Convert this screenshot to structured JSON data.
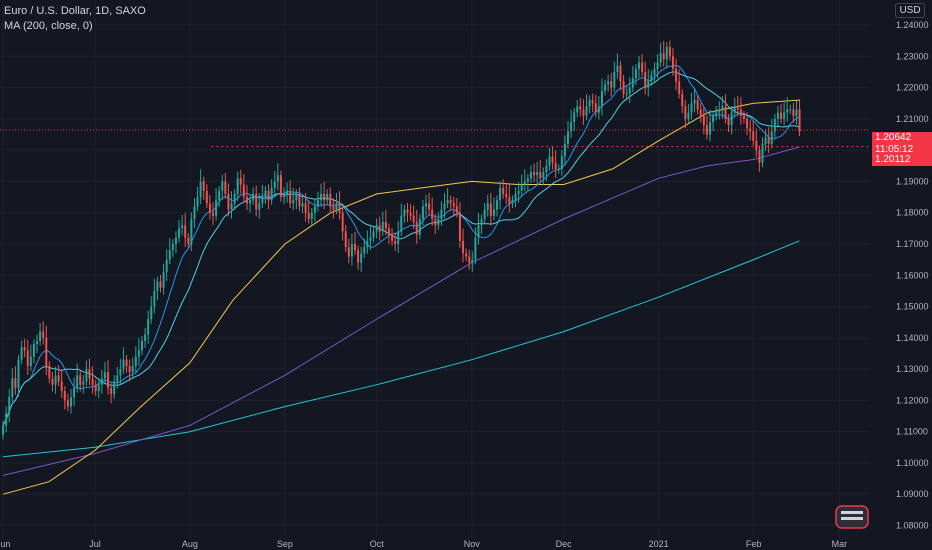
{
  "legend": {
    "symbol": "Euro / U.S. Dollar, 1D, SAXO",
    "indicator": "MA (200, close, 0)"
  },
  "currency_button": "USD",
  "price_tags": {
    "last_price": "1.20642",
    "countdown": "11:05:12",
    "level": "1.20112"
  },
  "colors": {
    "background": "#131722",
    "up": "#26a69a",
    "down": "#ef5350",
    "ma_fast": "#2196f3",
    "ma_mid": "#f7c948",
    "ma_long_a": "#7e57c2",
    "ma_long_b": "#26c6da",
    "level_line": "#f23645"
  },
  "chart_data": {
    "type": "candlestick",
    "title": "Euro / U.S. Dollar, 1D, SAXO",
    "ylim": [
      1.076,
      1.248
    ],
    "y_ticks": [
      1.08,
      1.09,
      1.1,
      1.11,
      1.12,
      1.13,
      1.14,
      1.15,
      1.16,
      1.17,
      1.18,
      1.19,
      1.2,
      1.21,
      1.22,
      1.23,
      1.24
    ],
    "x_labels": [
      {
        "label": "Jun",
        "day": 0
      },
      {
        "label": "Jul",
        "day": 30
      },
      {
        "label": "Aug",
        "day": 61
      },
      {
        "label": "Sep",
        "day": 92
      },
      {
        "label": "Oct",
        "day": 122
      },
      {
        "label": "Nov",
        "day": 153
      },
      {
        "label": "Dec",
        "day": 183
      },
      {
        "label": "2021",
        "day": 214
      },
      {
        "label": "Feb",
        "day": 245
      },
      {
        "label": "Mar",
        "day": 273
      }
    ],
    "x_range_days": [
      -1,
      283
    ],
    "level_lines": [
      {
        "value": 1.20642,
        "from_day": -1,
        "to_day": 283
      },
      {
        "value": 1.20112,
        "from_day": 68,
        "to_day": 283
      }
    ],
    "closes": [
      1.112,
      1.116,
      1.121,
      1.127,
      1.124,
      1.133,
      1.137,
      1.136,
      1.131,
      1.134,
      1.138,
      1.139,
      1.142,
      1.14,
      1.131,
      1.127,
      1.125,
      1.128,
      1.126,
      1.123,
      1.12,
      1.118,
      1.121,
      1.124,
      1.128,
      1.125,
      1.126,
      1.13,
      1.127,
      1.125,
      1.123,
      1.125,
      1.127,
      1.129,
      1.124,
      1.122,
      1.126,
      1.128,
      1.13,
      1.133,
      1.131,
      1.129,
      1.131,
      1.134,
      1.136,
      1.139,
      1.141,
      1.146,
      1.15,
      1.155,
      1.158,
      1.156,
      1.161,
      1.165,
      1.168,
      1.17,
      1.172,
      1.175,
      1.176,
      1.172,
      1.17,
      1.178,
      1.182,
      1.185,
      1.19,
      1.187,
      1.183,
      1.18,
      1.179,
      1.184,
      1.187,
      1.19,
      1.186,
      1.181,
      1.183,
      1.186,
      1.191,
      1.189,
      1.185,
      1.183,
      1.184,
      1.186,
      1.181,
      1.183,
      1.185,
      1.187,
      1.184,
      1.188,
      1.19,
      1.192,
      1.185,
      1.186,
      1.187,
      1.183,
      1.184,
      1.186,
      1.182,
      1.183,
      1.18,
      1.178,
      1.18,
      1.182,
      1.184,
      1.186,
      1.184,
      1.186,
      1.182,
      1.181,
      1.183,
      1.18,
      1.174,
      1.169,
      1.166,
      1.17,
      1.168,
      1.164,
      1.167,
      1.169,
      1.171,
      1.172,
      1.174,
      1.176,
      1.174,
      1.177,
      1.175,
      1.173,
      1.171,
      1.17,
      1.174,
      1.179,
      1.181,
      1.18,
      1.179,
      1.177,
      1.173,
      1.178,
      1.182,
      1.183,
      1.181,
      1.178,
      1.176,
      1.178,
      1.181,
      1.183,
      1.184,
      1.183,
      1.182,
      1.18,
      1.171,
      1.167,
      1.166,
      1.164,
      1.165,
      1.172,
      1.176,
      1.178,
      1.181,
      1.183,
      1.179,
      1.181,
      1.184,
      1.188,
      1.186,
      1.185,
      1.183,
      1.184,
      1.186,
      1.187,
      1.189,
      1.19,
      1.191,
      1.193,
      1.192,
      1.193,
      1.191,
      1.193,
      1.195,
      1.198,
      1.196,
      1.194,
      1.194,
      1.198,
      1.202,
      1.206,
      1.209,
      1.212,
      1.214,
      1.213,
      1.211,
      1.214,
      1.216,
      1.215,
      1.212,
      1.214,
      1.219,
      1.221,
      1.222,
      1.22,
      1.225,
      1.227,
      1.222,
      1.218,
      1.218,
      1.22,
      1.223,
      1.226,
      1.228,
      1.225,
      1.22,
      1.222,
      1.224,
      1.226,
      1.228,
      1.231,
      1.229,
      1.233,
      1.23,
      1.226,
      1.222,
      1.218,
      1.214,
      1.21,
      1.212,
      1.215,
      1.216,
      1.213,
      1.211,
      1.208,
      1.205,
      1.209,
      1.211,
      1.212,
      1.213,
      1.214,
      1.21,
      1.208,
      1.212,
      1.214,
      1.213,
      1.211,
      1.21,
      1.207,
      1.206,
      1.203,
      1.2,
      1.196,
      1.202,
      1.204,
      1.202,
      1.206,
      1.21,
      1.212,
      1.21,
      1.212,
      1.213,
      1.213,
      1.211,
      1.213,
      1.206
    ],
    "ma_series_y": [
      {
        "name": "MA fast",
        "color": "#2196f3"
      },
      {
        "name": "MA mid",
        "color": "#f7c948"
      },
      {
        "name": "MA long A",
        "color": "#7e57c2"
      },
      {
        "name": "MA long B",
        "color": "#26c6da"
      }
    ],
    "ma_mid_points": [
      [
        0,
        1.09
      ],
      [
        15,
        1.094
      ],
      [
        30,
        1.104
      ],
      [
        45,
        1.118
      ],
      [
        61,
        1.132
      ],
      [
        75,
        1.152
      ],
      [
        92,
        1.17
      ],
      [
        107,
        1.18
      ],
      [
        122,
        1.186
      ],
      [
        137,
        1.188
      ],
      [
        153,
        1.19
      ],
      [
        168,
        1.189
      ],
      [
        183,
        1.189
      ],
      [
        199,
        1.194
      ],
      [
        214,
        1.203
      ],
      [
        230,
        1.212
      ],
      [
        245,
        1.215
      ],
      [
        260,
        1.216
      ]
    ],
    "ma_long_a_points": [
      [
        0,
        1.096
      ],
      [
        30,
        1.103
      ],
      [
        61,
        1.112
      ],
      [
        92,
        1.128
      ],
      [
        122,
        1.146
      ],
      [
        153,
        1.164
      ],
      [
        183,
        1.178
      ],
      [
        214,
        1.191
      ],
      [
        230,
        1.195
      ],
      [
        245,
        1.197
      ],
      [
        260,
        1.201
      ]
    ],
    "ma_long_b_points": [
      [
        0,
        1.102
      ],
      [
        30,
        1.105
      ],
      [
        61,
        1.11
      ],
      [
        92,
        1.118
      ],
      [
        122,
        1.125
      ],
      [
        153,
        1.133
      ],
      [
        183,
        1.142
      ],
      [
        214,
        1.153
      ],
      [
        245,
        1.165
      ],
      [
        260,
        1.171
      ]
    ]
  }
}
